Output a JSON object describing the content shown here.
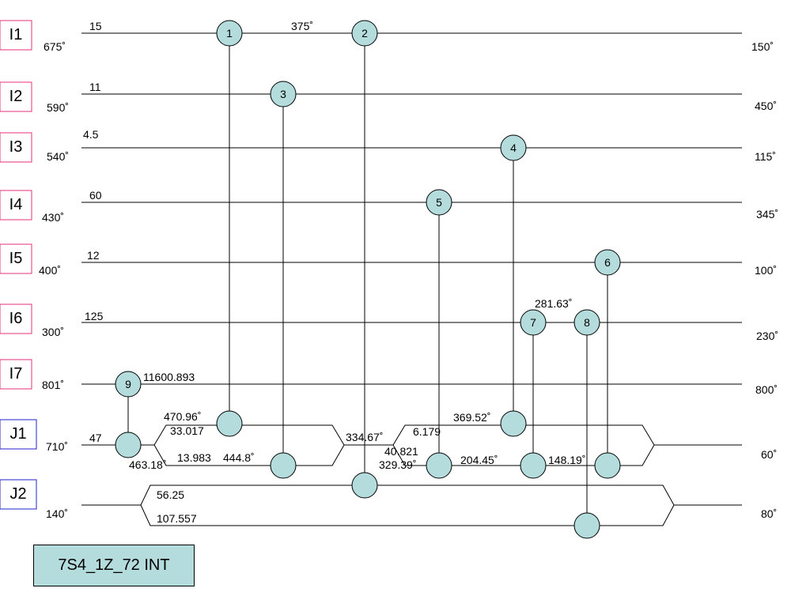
{
  "hot_streams": [
    {
      "id": "I1",
      "t_in": "675˚",
      "t_out": "150˚",
      "cp": "15"
    },
    {
      "id": "I2",
      "t_in": "590˚",
      "t_out": "450˚",
      "cp": "11"
    },
    {
      "id": "I3",
      "t_in": "540˚",
      "t_out": "115˚",
      "cp": "4.5"
    },
    {
      "id": "I4",
      "t_in": "430˚",
      "t_out": "345˚",
      "cp": "60"
    },
    {
      "id": "I5",
      "t_in": "400˚",
      "t_out": "100˚",
      "cp": "12"
    },
    {
      "id": "I6",
      "t_in": "300˚",
      "t_out": "230˚",
      "cp": "125"
    },
    {
      "id": "I7",
      "t_in": "801˚",
      "t_out": "800˚",
      "cp": "11600.893"
    }
  ],
  "cold_streams": [
    {
      "id": "J1",
      "t_in": "710˚",
      "t_out": "60˚",
      "cp": "47"
    },
    {
      "id": "J2",
      "t_in": "140˚",
      "t_out": "80˚",
      "cp": ""
    }
  ],
  "exchangers": [
    "1",
    "2",
    "3",
    "4",
    "5",
    "6",
    "7",
    "8",
    "9"
  ],
  "annotations": {
    "i1_mid": "375˚",
    "i6_mid": "281.63˚",
    "j1_split_top_temp": "470.96˚",
    "j1_split_top_cp": "33.017",
    "j1_split_bottom_temp": "463.18˚",
    "j1_split_bottom_cp": "13.983",
    "j1_after3": "444.8˚",
    "j1_mix_temp": "334.67˚",
    "j1_split2_top_cp": "6.179",
    "j1_split2_bottom_cp": "40.821",
    "j1_split2_bottom_temp": "329.39˚",
    "j1_after5": "204.45˚",
    "j1_after7": "148.19˚",
    "j1_after4": "369.52˚",
    "j2_split_top_cp": "56.25",
    "j2_split_bottom_cp": "107.557"
  },
  "title": "7S4_1Z_72 INT"
}
